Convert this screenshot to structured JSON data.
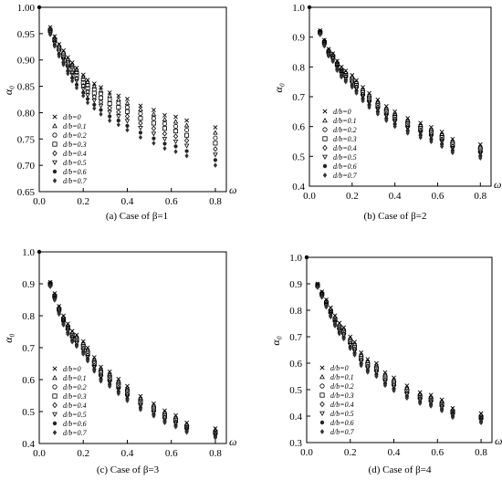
{
  "chart_data": [
    {
      "type": "scatter",
      "caption": "(a) Case of β=1",
      "xlabel": "ω",
      "ylabel": "α₀",
      "xlim": [
        0,
        0.85
      ],
      "ylim": [
        0.65,
        1.0
      ],
      "xticks": [
        "0.0",
        "0.2",
        "0.4",
        "0.6",
        "0.8"
      ],
      "yticks": [
        "0.65",
        "0.70",
        "0.75",
        "0.80",
        "0.85",
        "0.90",
        "0.95",
        "1.00"
      ],
      "grid": false,
      "legend_position": "bottom-left",
      "x": [
        0.05,
        0.07,
        0.09,
        0.11,
        0.13,
        0.15,
        0.17,
        0.2,
        0.22,
        0.25,
        0.28,
        0.32,
        0.36,
        0.4,
        0.46,
        0.52,
        0.57,
        0.62,
        0.67,
        0.8
      ],
      "series": [
        {
          "name": "d/b=0",
          "marker": "x",
          "values": [
            0.962,
            0.945,
            0.93,
            0.918,
            0.905,
            0.895,
            0.885,
            0.872,
            0.862,
            0.855,
            0.848,
            0.838,
            0.832,
            0.826,
            0.813,
            0.805,
            0.795,
            0.792,
            0.785,
            0.772
          ]
        },
        {
          "name": "d/b=0.1",
          "marker": "triangle",
          "values": [
            0.96,
            0.943,
            0.928,
            0.915,
            0.902,
            0.891,
            0.881,
            0.868,
            0.858,
            0.85,
            0.842,
            0.832,
            0.825,
            0.818,
            0.806,
            0.797,
            0.787,
            0.783,
            0.776,
            0.762
          ]
        },
        {
          "name": "d/b=0.2",
          "marker": "circle",
          "values": [
            0.958,
            0.94,
            0.925,
            0.912,
            0.898,
            0.887,
            0.876,
            0.863,
            0.852,
            0.844,
            0.836,
            0.825,
            0.818,
            0.81,
            0.798,
            0.789,
            0.779,
            0.774,
            0.767,
            0.752
          ]
        },
        {
          "name": "d/b=0.3",
          "marker": "square",
          "values": [
            0.956,
            0.938,
            0.922,
            0.908,
            0.894,
            0.882,
            0.871,
            0.857,
            0.846,
            0.837,
            0.828,
            0.817,
            0.81,
            0.802,
            0.789,
            0.78,
            0.77,
            0.765,
            0.757,
            0.742
          ]
        },
        {
          "name": "d/b=0.4",
          "marker": "diamond",
          "values": [
            0.954,
            0.935,
            0.918,
            0.904,
            0.889,
            0.877,
            0.865,
            0.851,
            0.84,
            0.83,
            0.82,
            0.809,
            0.801,
            0.793,
            0.78,
            0.77,
            0.76,
            0.755,
            0.747,
            0.731
          ]
        },
        {
          "name": "d/b=0.5",
          "marker": "tri-down",
          "values": [
            0.952,
            0.932,
            0.915,
            0.9,
            0.885,
            0.872,
            0.86,
            0.845,
            0.833,
            0.823,
            0.813,
            0.801,
            0.793,
            0.784,
            0.771,
            0.76,
            0.75,
            0.745,
            0.737,
            0.72
          ]
        },
        {
          "name": "d/b=0.6",
          "marker": "dot",
          "values": [
            0.95,
            0.929,
            0.911,
            0.895,
            0.879,
            0.866,
            0.853,
            0.838,
            0.826,
            0.815,
            0.805,
            0.793,
            0.785,
            0.775,
            0.762,
            0.751,
            0.741,
            0.736,
            0.727,
            0.71
          ]
        },
        {
          "name": "d/b=0.7",
          "marker": "star",
          "values": [
            0.948,
            0.926,
            0.907,
            0.891,
            0.874,
            0.86,
            0.847,
            0.832,
            0.819,
            0.808,
            0.797,
            0.785,
            0.777,
            0.767,
            0.753,
            0.742,
            0.732,
            0.726,
            0.718,
            0.7
          ]
        }
      ]
    },
    {
      "type": "scatter",
      "caption": "(b) Case of β=2",
      "xlabel": "ω",
      "ylabel": "α₀",
      "xlim": [
        0,
        0.85
      ],
      "ylim": [
        0.4,
        1.0
      ],
      "xticks": [
        "0.0",
        "0.2",
        "0.4",
        "0.6",
        "0.8"
      ],
      "yticks": [
        "0.4",
        "0.5",
        "0.6",
        "0.7",
        "0.8",
        "0.9",
        "1.0"
      ],
      "grid": false,
      "legend_position": "bottom-left",
      "x": [
        0.05,
        0.07,
        0.09,
        0.11,
        0.13,
        0.15,
        0.17,
        0.2,
        0.22,
        0.25,
        0.28,
        0.32,
        0.36,
        0.4,
        0.46,
        0.52,
        0.57,
        0.62,
        0.67,
        0.8
      ],
      "series": [
        {
          "name": "d/b=0",
          "marker": "x",
          "values": [
            0.922,
            0.89,
            0.86,
            0.845,
            0.82,
            0.8,
            0.787,
            0.772,
            0.755,
            0.732,
            0.712,
            0.69,
            0.668,
            0.65,
            0.628,
            0.612,
            0.598,
            0.582,
            0.558,
            0.54
          ]
        },
        {
          "name": "d/b=0.1",
          "marker": "triangle",
          "values": [
            0.92,
            0.888,
            0.857,
            0.842,
            0.817,
            0.796,
            0.783,
            0.767,
            0.75,
            0.726,
            0.706,
            0.684,
            0.662,
            0.644,
            0.622,
            0.606,
            0.592,
            0.576,
            0.552,
            0.534
          ]
        },
        {
          "name": "d/b=0.2",
          "marker": "circle",
          "values": [
            0.918,
            0.885,
            0.854,
            0.838,
            0.812,
            0.792,
            0.778,
            0.762,
            0.744,
            0.72,
            0.7,
            0.678,
            0.656,
            0.637,
            0.615,
            0.6,
            0.586,
            0.57,
            0.546,
            0.528
          ]
        },
        {
          "name": "d/b=0.3",
          "marker": "square",
          "values": [
            0.916,
            0.882,
            0.85,
            0.834,
            0.808,
            0.787,
            0.772,
            0.756,
            0.738,
            0.714,
            0.693,
            0.671,
            0.649,
            0.63,
            0.608,
            0.593,
            0.579,
            0.563,
            0.54,
            0.522
          ]
        },
        {
          "name": "d/b=0.4",
          "marker": "diamond",
          "values": [
            0.914,
            0.879,
            0.847,
            0.83,
            0.803,
            0.782,
            0.767,
            0.75,
            0.732,
            0.707,
            0.686,
            0.664,
            0.642,
            0.623,
            0.601,
            0.586,
            0.572,
            0.556,
            0.533,
            0.515
          ]
        },
        {
          "name": "d/b=0.5",
          "marker": "tri-down",
          "values": [
            0.912,
            0.876,
            0.843,
            0.826,
            0.798,
            0.777,
            0.761,
            0.744,
            0.726,
            0.7,
            0.679,
            0.657,
            0.635,
            0.616,
            0.594,
            0.578,
            0.565,
            0.549,
            0.526,
            0.508
          ]
        },
        {
          "name": "d/b=0.6",
          "marker": "dot",
          "values": [
            0.91,
            0.873,
            0.84,
            0.822,
            0.793,
            0.772,
            0.756,
            0.738,
            0.719,
            0.693,
            0.672,
            0.65,
            0.627,
            0.608,
            0.586,
            0.571,
            0.557,
            0.541,
            0.519,
            0.501
          ]
        },
        {
          "name": "d/b=0.7",
          "marker": "star",
          "values": [
            0.908,
            0.87,
            0.836,
            0.818,
            0.788,
            0.766,
            0.75,
            0.732,
            0.712,
            0.686,
            0.664,
            0.642,
            0.62,
            0.6,
            0.578,
            0.563,
            0.549,
            0.533,
            0.512,
            0.494
          ]
        }
      ]
    },
    {
      "type": "scatter",
      "caption": "(c) Case of β=3",
      "xlabel": "ω",
      "ylabel": "α₀",
      "xlim": [
        0,
        0.85
      ],
      "ylim": [
        0.4,
        1.0
      ],
      "xticks": [
        "0.0",
        "0.2",
        "0.4",
        "0.6",
        "0.8"
      ],
      "yticks": [
        "0.4",
        "0.5",
        "0.6",
        "0.7",
        "0.8",
        "0.9",
        "1.0"
      ],
      "grid": false,
      "legend_position": "bottom-left",
      "x": [
        0.05,
        0.07,
        0.09,
        0.11,
        0.13,
        0.15,
        0.17,
        0.2,
        0.22,
        0.25,
        0.28,
        0.32,
        0.36,
        0.4,
        0.46,
        0.52,
        0.57,
        0.62,
        0.67,
        0.8
      ],
      "series": [
        {
          "name": "d/b=0",
          "marker": "x",
          "values": [
            0.905,
            0.87,
            0.83,
            0.8,
            0.775,
            0.752,
            0.74,
            0.72,
            0.7,
            0.67,
            0.64,
            0.625,
            0.602,
            0.58,
            0.548,
            0.525,
            0.503,
            0.488,
            0.465,
            0.447
          ]
        },
        {
          "name": "d/b=0.1",
          "marker": "triangle",
          "values": [
            0.903,
            0.867,
            0.827,
            0.796,
            0.771,
            0.748,
            0.735,
            0.715,
            0.694,
            0.664,
            0.634,
            0.619,
            0.596,
            0.574,
            0.543,
            0.52,
            0.498,
            0.483,
            0.461,
            0.443
          ]
        },
        {
          "name": "d/b=0.2",
          "marker": "circle",
          "values": [
            0.901,
            0.864,
            0.823,
            0.792,
            0.766,
            0.743,
            0.73,
            0.709,
            0.688,
            0.657,
            0.627,
            0.612,
            0.589,
            0.567,
            0.537,
            0.514,
            0.492,
            0.477,
            0.456,
            0.438
          ]
        },
        {
          "name": "d/b=0.3",
          "marker": "square",
          "values": [
            0.899,
            0.861,
            0.82,
            0.788,
            0.762,
            0.738,
            0.725,
            0.703,
            0.682,
            0.651,
            0.621,
            0.605,
            0.582,
            0.56,
            0.53,
            0.508,
            0.486,
            0.472,
            0.451,
            0.434
          ]
        },
        {
          "name": "d/b=0.4",
          "marker": "diamond",
          "values": [
            0.897,
            0.858,
            0.816,
            0.784,
            0.757,
            0.733,
            0.719,
            0.697,
            0.676,
            0.644,
            0.614,
            0.598,
            0.575,
            0.553,
            0.524,
            0.502,
            0.481,
            0.467,
            0.447,
            0.43
          ]
        },
        {
          "name": "d/b=0.5",
          "marker": "tri-down",
          "values": [
            0.895,
            0.855,
            0.812,
            0.779,
            0.752,
            0.728,
            0.714,
            0.691,
            0.67,
            0.638,
            0.607,
            0.591,
            0.568,
            0.546,
            0.518,
            0.496,
            0.475,
            0.462,
            0.443,
            0.426
          ]
        },
        {
          "name": "d/b=0.6",
          "marker": "dot",
          "values": [
            0.893,
            0.852,
            0.809,
            0.775,
            0.747,
            0.723,
            0.709,
            0.686,
            0.664,
            0.632,
            0.601,
            0.585,
            0.562,
            0.54,
            0.512,
            0.491,
            0.47,
            0.457,
            0.439,
            0.422
          ]
        },
        {
          "name": "d/b=0.7",
          "marker": "star",
          "values": [
            0.891,
            0.849,
            0.805,
            0.771,
            0.742,
            0.718,
            0.704,
            0.68,
            0.658,
            0.626,
            0.595,
            0.579,
            0.556,
            0.534,
            0.506,
            0.486,
            0.465,
            0.452,
            0.435,
            0.418
          ]
        }
      ]
    },
    {
      "type": "scatter",
      "caption": "(d) Case of β=4",
      "xlabel": "ω",
      "ylabel": "α₀",
      "xlim": [
        0,
        0.85
      ],
      "ylim": [
        0.3,
        1.0
      ],
      "xticks": [
        "0.0",
        "0.2",
        "0.4",
        "0.6",
        "0.8"
      ],
      "yticks": [
        "0.3",
        "0.4",
        "0.5",
        "0.6",
        "0.7",
        "0.8",
        "0.9",
        "1.0"
      ],
      "grid": false,
      "legend_position": "bottom-left",
      "x": [
        0.05,
        0.07,
        0.09,
        0.11,
        0.13,
        0.15,
        0.17,
        0.2,
        0.22,
        0.25,
        0.28,
        0.32,
        0.36,
        0.4,
        0.46,
        0.52,
        0.57,
        0.62,
        0.67,
        0.8
      ],
      "series": [
        {
          "name": "d/b=0",
          "marker": "x",
          "values": [
            0.9,
            0.87,
            0.84,
            0.81,
            0.78,
            0.752,
            0.735,
            0.7,
            0.68,
            0.64,
            0.615,
            0.6,
            0.565,
            0.545,
            0.515,
            0.49,
            0.48,
            0.462,
            0.43,
            0.41
          ]
        },
        {
          "name": "d/b=0.1",
          "marker": "triangle",
          "values": [
            0.898,
            0.867,
            0.836,
            0.805,
            0.775,
            0.747,
            0.729,
            0.694,
            0.673,
            0.633,
            0.608,
            0.593,
            0.558,
            0.538,
            0.508,
            0.484,
            0.474,
            0.456,
            0.425,
            0.405
          ]
        },
        {
          "name": "d/b=0.2",
          "marker": "circle",
          "values": [
            0.896,
            0.864,
            0.832,
            0.8,
            0.769,
            0.741,
            0.723,
            0.687,
            0.666,
            0.626,
            0.601,
            0.585,
            0.551,
            0.531,
            0.501,
            0.478,
            0.468,
            0.45,
            0.42,
            0.4
          ]
        },
        {
          "name": "d/b=0.3",
          "marker": "square",
          "values": [
            0.894,
            0.861,
            0.828,
            0.795,
            0.764,
            0.735,
            0.717,
            0.681,
            0.659,
            0.619,
            0.594,
            0.578,
            0.544,
            0.524,
            0.495,
            0.472,
            0.462,
            0.444,
            0.415,
            0.395
          ]
        },
        {
          "name": "d/b=0.4",
          "marker": "diamond",
          "values": [
            0.892,
            0.858,
            0.824,
            0.79,
            0.758,
            0.729,
            0.71,
            0.674,
            0.652,
            0.612,
            0.587,
            0.571,
            0.537,
            0.517,
            0.488,
            0.466,
            0.456,
            0.438,
            0.41,
            0.39
          ]
        },
        {
          "name": "d/b=0.5",
          "marker": "tri-down",
          "values": [
            0.89,
            0.855,
            0.82,
            0.785,
            0.753,
            0.723,
            0.704,
            0.668,
            0.645,
            0.605,
            0.58,
            0.564,
            0.53,
            0.51,
            0.482,
            0.46,
            0.45,
            0.432,
            0.405,
            0.385
          ]
        },
        {
          "name": "d/b=0.6",
          "marker": "dot",
          "values": [
            0.888,
            0.852,
            0.816,
            0.78,
            0.747,
            0.717,
            0.698,
            0.661,
            0.638,
            0.598,
            0.573,
            0.557,
            0.523,
            0.503,
            0.475,
            0.454,
            0.444,
            0.426,
            0.4,
            0.38
          ]
        },
        {
          "name": "d/b=0.7",
          "marker": "star",
          "values": [
            0.886,
            0.849,
            0.812,
            0.775,
            0.741,
            0.711,
            0.692,
            0.655,
            0.631,
            0.591,
            0.566,
            0.55,
            0.516,
            0.496,
            0.468,
            0.448,
            0.438,
            0.42,
            0.395,
            0.375
          ]
        }
      ]
    }
  ]
}
